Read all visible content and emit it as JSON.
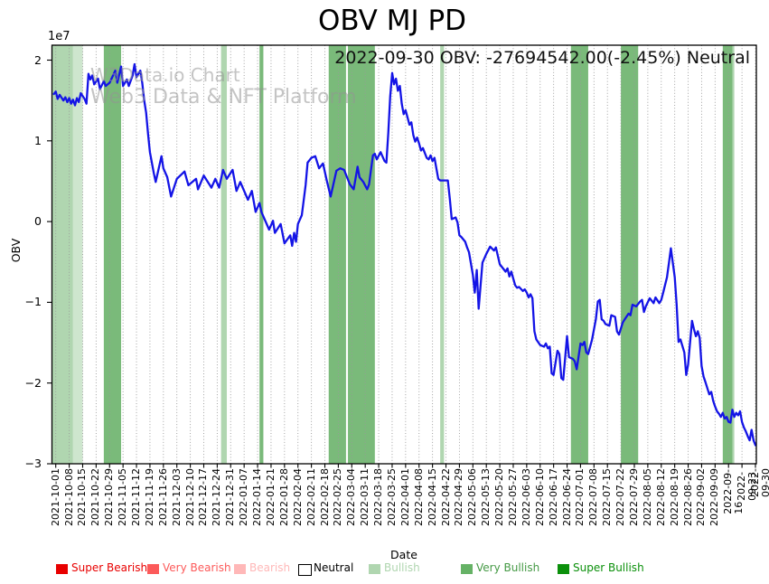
{
  "chart_data": {
    "type": "line",
    "title": "OBV MJ PD",
    "annotation": "2022-09-30 OBV: -27694542.00(-2.45%) Neutral",
    "last_point": {
      "date": "2022-09-30",
      "obv": -27694542.0,
      "change_pct": -2.45,
      "signal": "Neutral"
    },
    "watermark": [
      "W3Data.io Chart",
      "Web3 Data & NFT Platform"
    ],
    "xlabel": "Date",
    "ylabel": "OBV",
    "y_offset_label": "1e7",
    "unit": "1e7",
    "value_scale": 10000000,
    "ylim_1e7": [
      -3.0,
      2.185
    ],
    "grid": "vertical-dotted",
    "line_color": "#1414e6",
    "y_ticks": [
      {
        "label": "2",
        "value": 2
      },
      {
        "label": "1",
        "value": 1
      },
      {
        "label": "0",
        "value": 0
      },
      {
        "label": "−1",
        "value": -1
      },
      {
        "label": "−2",
        "value": -2
      },
      {
        "label": "−3",
        "value": -3
      }
    ],
    "x_ticks": [
      "2021-10-01",
      "2021-10-08",
      "2021-10-15",
      "2021-10-22",
      "2021-10-29",
      "2021-11-05",
      "2021-11-12",
      "2021-11-19",
      "2021-11-26",
      "2021-12-03",
      "2021-12-10",
      "2021-12-17",
      "2021-12-24",
      "2021-12-31",
      "2022-01-07",
      "2022-01-14",
      "2022-01-21",
      "2022-01-28",
      "2022-02-04",
      "2022-02-11",
      "2022-02-18",
      "2022-02-25",
      "2022-03-04",
      "2022-03-11",
      "2022-03-18",
      "2022-03-25",
      "2022-04-01",
      "2022-04-08",
      "2022-04-15",
      "2022-04-22",
      "2022-04-29",
      "2022-05-06",
      "2022-05-13",
      "2022-05-20",
      "2022-05-27",
      "2022-06-03",
      "2022-06-10",
      "2022-06-17",
      "2022-06-24",
      "2022-07-01",
      "2022-07-08",
      "2022-07-15",
      "2022-07-22",
      "2022-07-29",
      "2022-08-05",
      "2022-08-12",
      "2022-08-19",
      "2022-08-26",
      "2022-09-02",
      "2022-09-09",
      "2022-09-16",
      "2022-09-23",
      "2022-09-30"
    ],
    "band_colors": {
      "bullish": "#b0d6b0",
      "bullish-light": "#cee6ce",
      "very-bullish": "#7aba7a"
    },
    "bands": [
      {
        "from": "2021-09-29",
        "to": "2021-10-10",
        "level": "bullish"
      },
      {
        "from": "2021-10-10",
        "to": "2021-10-15",
        "level": "bullish-light"
      },
      {
        "from": "2021-10-26",
        "to": "2021-11-04",
        "level": "very-bullish"
      },
      {
        "from": "2021-12-26",
        "to": "2021-12-29",
        "level": "bullish"
      },
      {
        "from": "2022-01-15",
        "to": "2022-01-17",
        "level": "very-bullish"
      },
      {
        "from": "2022-02-20",
        "to": "2022-03-01",
        "level": "very-bullish"
      },
      {
        "from": "2022-03-02",
        "to": "2022-03-16",
        "level": "very-bullish"
      },
      {
        "from": "2022-04-19",
        "to": "2022-04-21",
        "level": "bullish"
      },
      {
        "from": "2022-06-26",
        "to": "2022-07-05",
        "level": "very-bullish"
      },
      {
        "from": "2022-07-22",
        "to": "2022-07-31",
        "level": "very-bullish"
      },
      {
        "from": "2022-09-13",
        "to": "2022-09-18",
        "level": "very-bullish"
      },
      {
        "from": "2022-09-18",
        "to": "2022-09-19",
        "level": "bullish"
      }
    ],
    "legend": [
      {
        "label": "Super Bearish",
        "swatch": "#e80000",
        "text_color": "#e80000"
      },
      {
        "label": "Very Bearish",
        "swatch": "#fc5a5a",
        "text_color": "#fc5a5a"
      },
      {
        "label": "Bearish",
        "swatch": "#ffb8b8",
        "text_color": "#ffb8b8"
      },
      {
        "label": "Neutral",
        "swatch": "#ffffff",
        "text_color": "#000000",
        "border": "#000000"
      },
      {
        "label": "Bullish",
        "swatch": "#b0d6b0",
        "text_color": "#b0d6b0"
      },
      {
        "label": "Very Bullish",
        "swatch": "#66b266",
        "text_color": "#449944"
      },
      {
        "label": "Super Bullish",
        "swatch": "#0b900b",
        "text_color": "#0b900b"
      }
    ],
    "points": [
      [
        "2021-09-30",
        1.58
      ],
      [
        "2021-10-01",
        1.61
      ],
      [
        "2021-10-02",
        1.52
      ],
      [
        "2021-10-03",
        1.57
      ],
      [
        "2021-10-05",
        1.5
      ],
      [
        "2021-10-06",
        1.54
      ],
      [
        "2021-10-07",
        1.48
      ],
      [
        "2021-10-08",
        1.53
      ],
      [
        "2021-10-09",
        1.46
      ],
      [
        "2021-10-10",
        1.51
      ],
      [
        "2021-10-11",
        1.44
      ],
      [
        "2021-10-12",
        1.53
      ],
      [
        "2021-10-13",
        1.48
      ],
      [
        "2021-10-14",
        1.59
      ],
      [
        "2021-10-16",
        1.52
      ],
      [
        "2021-10-17",
        1.46
      ],
      [
        "2021-10-18",
        1.83
      ],
      [
        "2021-10-19",
        1.76
      ],
      [
        "2021-10-20",
        1.81
      ],
      [
        "2021-10-21",
        1.7
      ],
      [
        "2021-10-23",
        1.77
      ],
      [
        "2021-10-24",
        1.64
      ],
      [
        "2021-10-26",
        1.74
      ],
      [
        "2021-10-27",
        1.68
      ],
      [
        "2021-10-29",
        1.72
      ],
      [
        "2021-11-01",
        1.87
      ],
      [
        "2021-11-02",
        1.72
      ],
      [
        "2021-11-04",
        1.92
      ],
      [
        "2021-11-05",
        1.68
      ],
      [
        "2021-11-07",
        1.76
      ],
      [
        "2021-11-08",
        1.68
      ],
      [
        "2021-11-10",
        1.81
      ],
      [
        "2021-11-11",
        1.95
      ],
      [
        "2021-11-12",
        1.79
      ],
      [
        "2021-11-14",
        1.87
      ],
      [
        "2021-11-15",
        1.72
      ],
      [
        "2021-11-16",
        1.5
      ],
      [
        "2021-11-17",
        1.35
      ],
      [
        "2021-11-18",
        1.09
      ],
      [
        "2021-11-19",
        0.86
      ],
      [
        "2021-11-21",
        0.6
      ],
      [
        "2021-11-22",
        0.49
      ],
      [
        "2021-11-25",
        0.81
      ],
      [
        "2021-11-26",
        0.66
      ],
      [
        "2021-11-28",
        0.55
      ],
      [
        "2021-11-30",
        0.31
      ],
      [
        "2021-12-03",
        0.53
      ],
      [
        "2021-12-07",
        0.62
      ],
      [
        "2021-12-09",
        0.45
      ],
      [
        "2021-12-13",
        0.53
      ],
      [
        "2021-12-14",
        0.4
      ],
      [
        "2021-12-17",
        0.57
      ],
      [
        "2021-12-21",
        0.42
      ],
      [
        "2021-12-23",
        0.53
      ],
      [
        "2021-12-25",
        0.42
      ],
      [
        "2021-12-27",
        0.64
      ],
      [
        "2021-12-29",
        0.53
      ],
      [
        "2022-01-01",
        0.64
      ],
      [
        "2022-01-03",
        0.38
      ],
      [
        "2022-01-05",
        0.49
      ],
      [
        "2022-01-09",
        0.27
      ],
      [
        "2022-01-11",
        0.38
      ],
      [
        "2022-01-13",
        0.12
      ],
      [
        "2022-01-15",
        0.23
      ],
      [
        "2022-01-16",
        0.12
      ],
      [
        "2022-01-20",
        -0.1
      ],
      [
        "2022-01-22",
        0.01
      ],
      [
        "2022-01-23",
        -0.14
      ],
      [
        "2022-01-26",
        -0.03
      ],
      [
        "2022-01-28",
        -0.27
      ],
      [
        "2022-01-31",
        -0.17
      ],
      [
        "2022-02-01",
        -0.3
      ],
      [
        "2022-02-02",
        -0.14
      ],
      [
        "2022-02-03",
        -0.25
      ],
      [
        "2022-02-04",
        -0.03
      ],
      [
        "2022-02-06",
        0.08
      ],
      [
        "2022-02-08",
        0.45
      ],
      [
        "2022-02-09",
        0.73
      ],
      [
        "2022-02-11",
        0.79
      ],
      [
        "2022-02-13",
        0.81
      ],
      [
        "2022-02-15",
        0.66
      ],
      [
        "2022-02-17",
        0.72
      ],
      [
        "2022-02-19",
        0.51
      ],
      [
        "2022-02-21",
        0.31
      ],
      [
        "2022-02-24",
        0.63
      ],
      [
        "2022-02-26",
        0.66
      ],
      [
        "2022-02-28",
        0.64
      ],
      [
        "2022-03-03",
        0.46
      ],
      [
        "2022-03-05",
        0.4
      ],
      [
        "2022-03-07",
        0.68
      ],
      [
        "2022-03-08",
        0.55
      ],
      [
        "2022-03-10",
        0.49
      ],
      [
        "2022-03-12",
        0.4
      ],
      [
        "2022-03-13",
        0.46
      ],
      [
        "2022-03-15",
        0.82
      ],
      [
        "2022-03-16",
        0.84
      ],
      [
        "2022-03-17",
        0.77
      ],
      [
        "2022-03-19",
        0.86
      ],
      [
        "2022-03-21",
        0.75
      ],
      [
        "2022-03-22",
        0.73
      ],
      [
        "2022-03-23",
        1.1
      ],
      [
        "2022-03-24",
        1.55
      ],
      [
        "2022-03-25",
        1.84
      ],
      [
        "2022-03-26",
        1.7
      ],
      [
        "2022-03-27",
        1.77
      ],
      [
        "2022-03-28",
        1.62
      ],
      [
        "2022-03-29",
        1.68
      ],
      [
        "2022-03-30",
        1.46
      ],
      [
        "2022-03-31",
        1.33
      ],
      [
        "2022-04-01",
        1.38
      ],
      [
        "2022-04-02",
        1.29
      ],
      [
        "2022-04-03",
        1.2
      ],
      [
        "2022-04-04",
        1.23
      ],
      [
        "2022-04-05",
        1.07
      ],
      [
        "2022-04-06",
        0.99
      ],
      [
        "2022-04-07",
        1.04
      ],
      [
        "2022-04-08",
        0.97
      ],
      [
        "2022-04-09",
        0.88
      ],
      [
        "2022-04-10",
        0.91
      ],
      [
        "2022-04-12",
        0.79
      ],
      [
        "2022-04-13",
        0.77
      ],
      [
        "2022-04-14",
        0.82
      ],
      [
        "2022-04-15",
        0.75
      ],
      [
        "2022-04-16",
        0.79
      ],
      [
        "2022-04-18",
        0.53
      ],
      [
        "2022-04-19",
        0.51
      ],
      [
        "2022-04-21",
        0.51
      ],
      [
        "2022-04-23",
        0.51
      ],
      [
        "2022-04-24",
        0.28
      ],
      [
        "2022-04-25",
        0.03
      ],
      [
        "2022-04-27",
        0.05
      ],
      [
        "2022-04-28",
        -0.01
      ],
      [
        "2022-04-29",
        -0.17
      ],
      [
        "2022-04-30",
        -0.19
      ],
      [
        "2022-05-02",
        -0.25
      ],
      [
        "2022-05-03",
        -0.32
      ],
      [
        "2022-05-04",
        -0.38
      ],
      [
        "2022-05-06",
        -0.66
      ],
      [
        "2022-05-07",
        -0.88
      ],
      [
        "2022-05-08",
        -0.6
      ],
      [
        "2022-05-09",
        -1.08
      ],
      [
        "2022-05-11",
        -0.51
      ],
      [
        "2022-05-13",
        -0.4
      ],
      [
        "2022-05-15",
        -0.31
      ],
      [
        "2022-05-17",
        -0.36
      ],
      [
        "2022-05-18",
        -0.32
      ],
      [
        "2022-05-20",
        -0.53
      ],
      [
        "2022-05-23",
        -0.62
      ],
      [
        "2022-05-24",
        -0.58
      ],
      [
        "2022-05-25",
        -0.68
      ],
      [
        "2022-05-26",
        -0.62
      ],
      [
        "2022-05-28",
        -0.79
      ],
      [
        "2022-05-29",
        -0.82
      ],
      [
        "2022-05-30",
        -0.81
      ],
      [
        "2022-06-01",
        -0.86
      ],
      [
        "2022-06-02",
        -0.84
      ],
      [
        "2022-06-03",
        -0.88
      ],
      [
        "2022-06-04",
        -0.94
      ],
      [
        "2022-06-05",
        -0.9
      ],
      [
        "2022-06-06",
        -0.95
      ],
      [
        "2022-06-07",
        -1.36
      ],
      [
        "2022-06-08",
        -1.46
      ],
      [
        "2022-06-10",
        -1.53
      ],
      [
        "2022-06-12",
        -1.55
      ],
      [
        "2022-06-13",
        -1.51
      ],
      [
        "2022-06-14",
        -1.57
      ],
      [
        "2022-06-15",
        -1.55
      ],
      [
        "2022-06-16",
        -1.88
      ],
      [
        "2022-06-17",
        -1.9
      ],
      [
        "2022-06-19",
        -1.6
      ],
      [
        "2022-06-20",
        -1.64
      ],
      [
        "2022-06-21",
        -1.94
      ],
      [
        "2022-06-22",
        -1.96
      ],
      [
        "2022-06-24",
        -1.42
      ],
      [
        "2022-06-25",
        -1.68
      ],
      [
        "2022-06-27",
        -1.7
      ],
      [
        "2022-06-28",
        -1.73
      ],
      [
        "2022-06-29",
        -1.83
      ],
      [
        "2022-07-01",
        -1.51
      ],
      [
        "2022-07-02",
        -1.53
      ],
      [
        "2022-07-03",
        -1.49
      ],
      [
        "2022-07-04",
        -1.62
      ],
      [
        "2022-07-05",
        -1.64
      ],
      [
        "2022-07-07",
        -1.46
      ],
      [
        "2022-07-09",
        -1.21
      ],
      [
        "2022-07-10",
        -0.99
      ],
      [
        "2022-07-11",
        -0.97
      ],
      [
        "2022-07-12",
        -1.21
      ],
      [
        "2022-07-13",
        -1.23
      ],
      [
        "2022-07-14",
        -1.27
      ],
      [
        "2022-07-16",
        -1.29
      ],
      [
        "2022-07-17",
        -1.16
      ],
      [
        "2022-07-19",
        -1.18
      ],
      [
        "2022-07-20",
        -1.36
      ],
      [
        "2022-07-21",
        -1.4
      ],
      [
        "2022-07-23",
        -1.25
      ],
      [
        "2022-07-24",
        -1.21
      ],
      [
        "2022-07-26",
        -1.14
      ],
      [
        "2022-07-27",
        -1.16
      ],
      [
        "2022-07-28",
        -1.03
      ],
      [
        "2022-07-30",
        -1.05
      ],
      [
        "2022-08-01",
        -0.99
      ],
      [
        "2022-08-02",
        -0.97
      ],
      [
        "2022-08-03",
        -1.12
      ],
      [
        "2022-08-04",
        -1.05
      ],
      [
        "2022-08-06",
        -0.95
      ],
      [
        "2022-08-08",
        -1.01
      ],
      [
        "2022-08-09",
        -0.94
      ],
      [
        "2022-08-11",
        -1.01
      ],
      [
        "2022-08-12",
        -0.97
      ],
      [
        "2022-08-13",
        -0.88
      ],
      [
        "2022-08-15",
        -0.69
      ],
      [
        "2022-08-16",
        -0.51
      ],
      [
        "2022-08-17",
        -0.33
      ],
      [
        "2022-08-19",
        -0.69
      ],
      [
        "2022-08-20",
        -1.03
      ],
      [
        "2022-08-21",
        -1.49
      ],
      [
        "2022-08-22",
        -1.46
      ],
      [
        "2022-08-24",
        -1.62
      ],
      [
        "2022-08-25",
        -1.9
      ],
      [
        "2022-08-26",
        -1.77
      ],
      [
        "2022-08-28",
        -1.23
      ],
      [
        "2022-08-29",
        -1.33
      ],
      [
        "2022-08-30",
        -1.42
      ],
      [
        "2022-08-31",
        -1.36
      ],
      [
        "2022-09-01",
        -1.44
      ],
      [
        "2022-09-02",
        -1.79
      ],
      [
        "2022-09-03",
        -1.92
      ],
      [
        "2022-09-04",
        -1.99
      ],
      [
        "2022-09-06",
        -2.14
      ],
      [
        "2022-09-07",
        -2.11
      ],
      [
        "2022-09-08",
        -2.22
      ],
      [
        "2022-09-09",
        -2.29
      ],
      [
        "2022-09-10",
        -2.35
      ],
      [
        "2022-09-11",
        -2.38
      ],
      [
        "2022-09-12",
        -2.42
      ],
      [
        "2022-09-13",
        -2.37
      ],
      [
        "2022-09-14",
        -2.44
      ],
      [
        "2022-09-15",
        -2.42
      ],
      [
        "2022-09-16",
        -2.48
      ],
      [
        "2022-09-17",
        -2.49
      ],
      [
        "2022-09-18",
        -2.33
      ],
      [
        "2022-09-19",
        -2.42
      ],
      [
        "2022-09-20",
        -2.37
      ],
      [
        "2022-09-21",
        -2.4
      ],
      [
        "2022-09-22",
        -2.35
      ],
      [
        "2022-09-23",
        -2.48
      ],
      [
        "2022-09-24",
        -2.55
      ],
      [
        "2022-09-25",
        -2.6
      ],
      [
        "2022-09-26",
        -2.66
      ],
      [
        "2022-09-27",
        -2.71
      ],
      [
        "2022-09-28",
        -2.58
      ],
      [
        "2022-09-29",
        -2.71
      ],
      [
        "2022-09-30",
        -2.77
      ]
    ]
  }
}
